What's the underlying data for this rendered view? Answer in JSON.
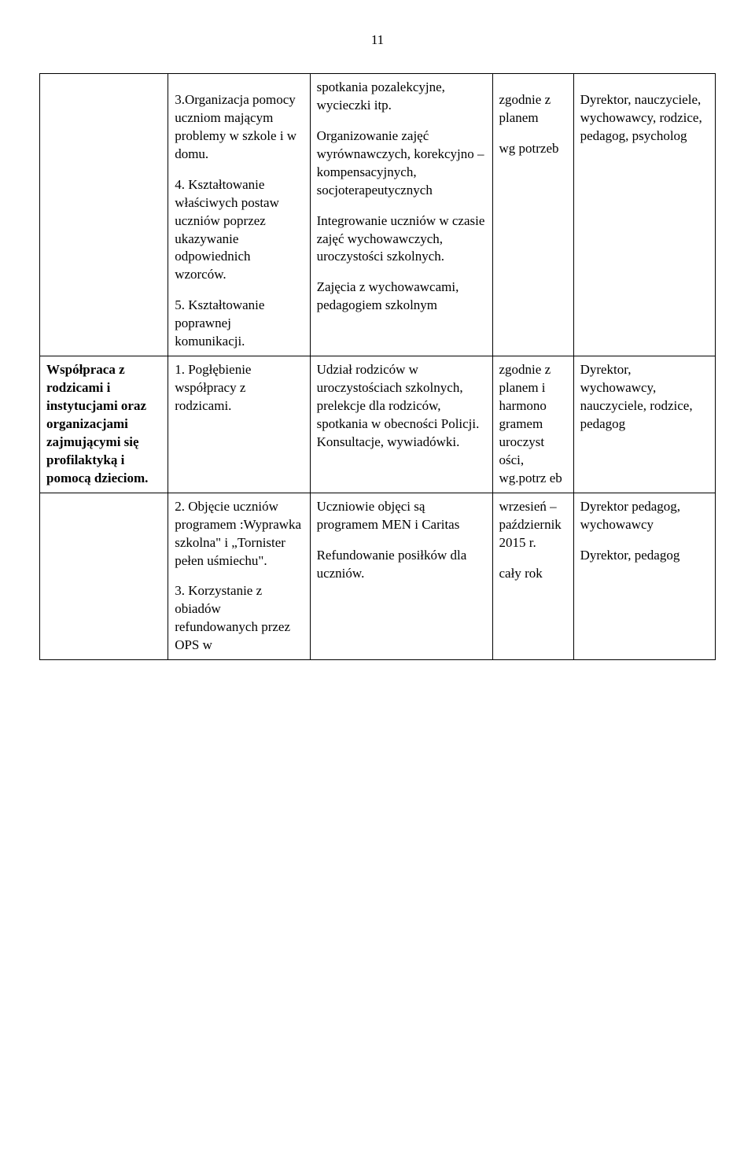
{
  "pageNumber": "11",
  "rows": [
    {
      "c1": "",
      "c2": [
        {
          "text": ""
        },
        {
          "text": "3.Organizacja pomocy uczniom mającym problemy w szkole i w domu."
        },
        {
          "text": "4. Kształtowanie właściwych postaw uczniów poprzez ukazywanie odpowiednich wzorców."
        },
        {
          "text": "5. Kształtowanie poprawnej komunikacji."
        }
      ],
      "c3": [
        {
          "text": "spotkania pozalekcyjne, wycieczki itp."
        },
        {
          "text": "Organizowanie zajęć wyrównawczych, korekcyjno – kompensacyjnych, socjoterapeutycznych"
        },
        {
          "text": "Integrowanie uczniów w czasie zajęć wychowawczych, uroczystości szkolnych."
        },
        {
          "text": "Zajęcia z wychowawcami, pedagogiem szkolnym"
        }
      ],
      "c4": [
        {
          "text": ""
        },
        {
          "text": "zgodnie z planem"
        },
        {
          "text": "wg potrzeb"
        },
        {
          "text": ""
        }
      ],
      "c5": [
        {
          "text": ""
        },
        {
          "text": "Dyrektor, nauczyciele, wychowawcy, rodzice, pedagog, psycholog"
        }
      ]
    },
    {
      "c1_bold": "Współpraca z rodzicami i instytucjami oraz organizacjami zajmującymi się profilaktyką i pomocą dzieciom.",
      "c2": [
        {
          "text": "1. Pogłębienie współpracy z rodzicami."
        }
      ],
      "c3": [
        {
          "text": "Udział rodziców w uroczystościach szkolnych, prelekcje dla rodziców, spotkania w obecności Policji. Konsultacje, wywiadówki."
        }
      ],
      "c4": [
        {
          "text": "zgodnie z planem i harmono gramem uroczyst ości, wg.potrz eb"
        }
      ],
      "c5": [
        {
          "text": "Dyrektor, wychowawcy, nauczyciele, rodzice, pedagog"
        }
      ]
    },
    {
      "c1": "",
      "c2": [
        {
          "text": "2. Objęcie uczniów programem :Wyprawka szkolna\" i „Tornister pełen uśmiechu\"."
        },
        {
          "text": "3. Korzystanie z obiadów refundowanych przez OPS w"
        }
      ],
      "c3": [
        {
          "text": "Uczniowie objęci są programem MEN i Caritas"
        },
        {
          "text": ""
        },
        {
          "text": "Refundowanie posiłków dla uczniów."
        }
      ],
      "c4": [
        {
          "text": "wrzesień – październik 2015 r."
        },
        {
          "text": ""
        },
        {
          "text": "cały rok"
        }
      ],
      "c5": [
        {
          "text": "Dyrektor pedagog, wychowawcy"
        },
        {
          "text": ""
        },
        {
          "text": "Dyrektor, pedagog"
        }
      ]
    }
  ]
}
